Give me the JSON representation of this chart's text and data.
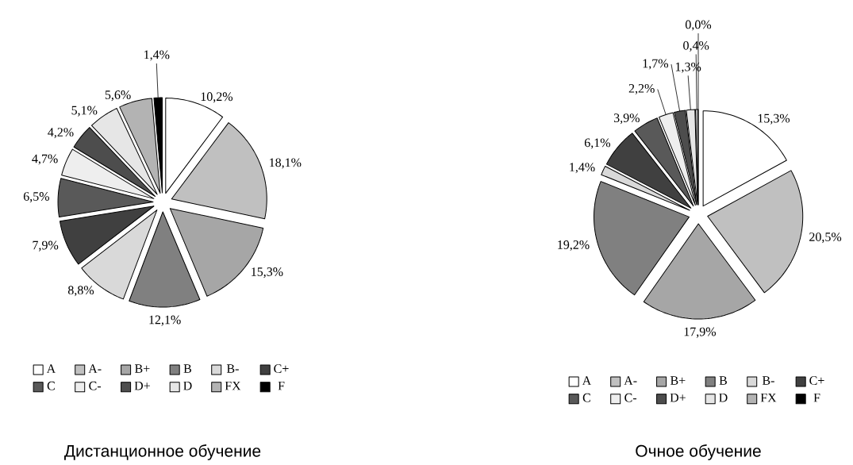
{
  "chart_data": [
    {
      "type": "pie",
      "title": "Дистанционное обучение",
      "categories": [
        "A",
        "A-",
        "B+",
        "B",
        "B-",
        "C+",
        "C",
        "C-",
        "D+",
        "D",
        "FX",
        "F"
      ],
      "values": [
        10.2,
        18.1,
        15.3,
        12.1,
        8.8,
        7.9,
        6.5,
        4.7,
        4.2,
        5.1,
        5.6,
        1.4
      ],
      "value_labels": [
        "10,2%",
        "18,1%",
        "15,3%",
        "12,1%",
        "8,8%",
        "7,9%",
        "6,5%",
        "4,7%",
        "4,2%",
        "5,1%",
        "5,6%",
        "1,4%"
      ],
      "colors": [
        "#ffffff",
        "#c0c0c0",
        "#a6a6a6",
        "#808080",
        "#d9d9d9",
        "#404040",
        "#595959",
        "#eeeeee",
        "#4d4d4d",
        "#e6e6e6",
        "#b3b3b3",
        "#000000"
      ],
      "legend": "bottom"
    },
    {
      "type": "pie",
      "title": "Очное обучение",
      "categories": [
        "A",
        "A-",
        "B+",
        "B",
        "B-",
        "C+",
        "C",
        "C-",
        "D+",
        "D",
        "FX",
        "F"
      ],
      "values": [
        15.3,
        20.5,
        17.9,
        19.2,
        1.4,
        6.1,
        3.9,
        2.2,
        1.7,
        1.3,
        0.4,
        0.0
      ],
      "value_labels": [
        "15,3%",
        "20,5%",
        "17,9%",
        "19,2%",
        "1,4%",
        "6,1%",
        "3,9%",
        "2,2%",
        "1,7%",
        "1,3%",
        "0,4%",
        "0,0%"
      ],
      "colors": [
        "#ffffff",
        "#c0c0c0",
        "#a6a6a6",
        "#808080",
        "#d9d9d9",
        "#404040",
        "#595959",
        "#eeeeee",
        "#4d4d4d",
        "#e6e6e6",
        "#b3b3b3",
        "#000000"
      ],
      "legend": "bottom"
    }
  ]
}
